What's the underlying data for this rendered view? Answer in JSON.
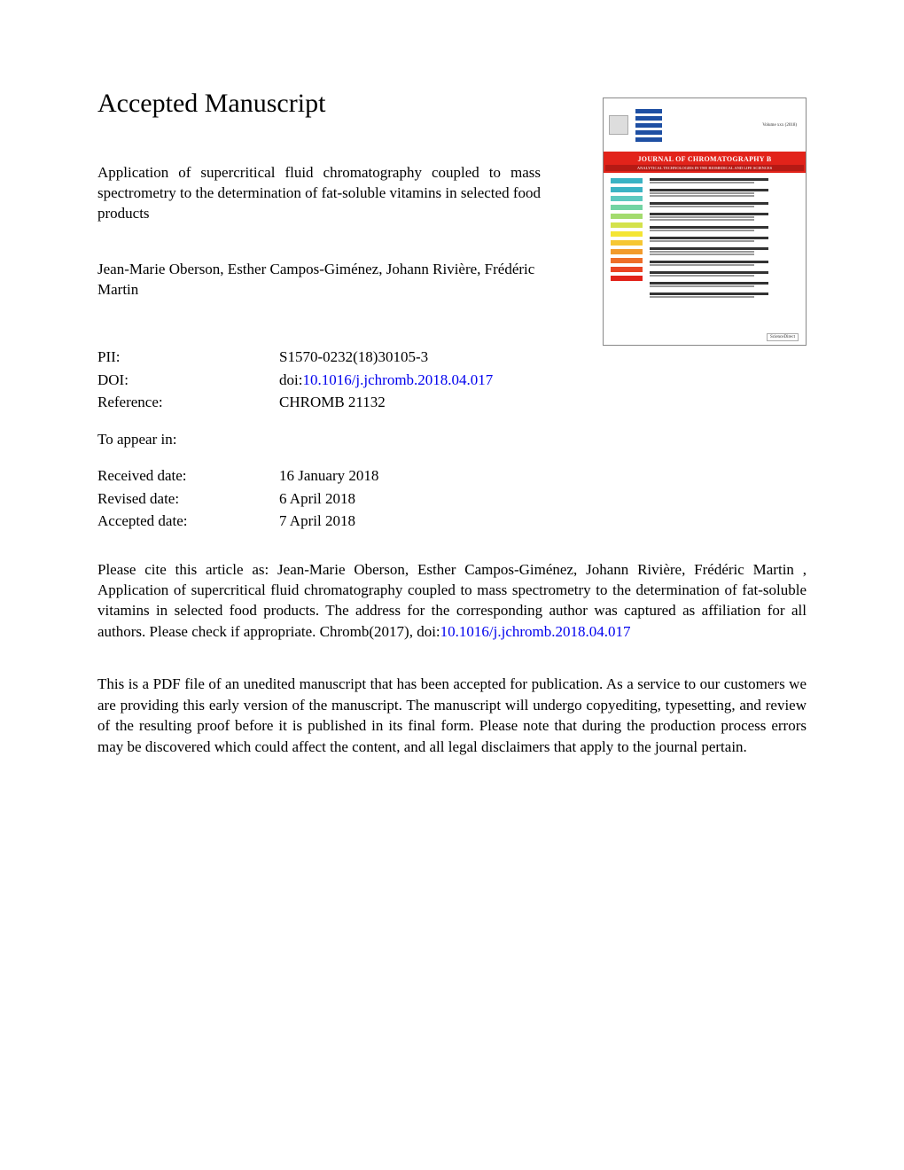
{
  "heading": "Accepted Manuscript",
  "article_title": "Application of supercritical fluid chromatography coupled to mass spectrometry to the determination of fat-soluble vitamins in selected food products",
  "authors": "Jean-Marie Oberson, Esther Campos-Giménez, Johann Rivière, Frédéric Martin",
  "meta": {
    "pii_label": "PII:",
    "pii_value": "S1570-0232(18)30105-3",
    "doi_label": "DOI:",
    "doi_prefix": "doi:",
    "doi_link": "10.1016/j.jchromb.2018.04.017",
    "reference_label": "Reference:",
    "reference_value": "CHROMB 21132",
    "to_appear_label": "To appear in:",
    "to_appear_value": "",
    "received_label": "Received date:",
    "received_value": "16 January 2018",
    "revised_label": "Revised date:",
    "revised_value": "6 April 2018",
    "accepted_label": "Accepted date:",
    "accepted_value": "7 April 2018"
  },
  "citation_pre": "Please cite this article as: Jean-Marie Oberson, Esther Campos-Giménez, Johann Rivière, Frédéric Martin , Application of supercritical fluid chromatography coupled to mass spectrometry to the determination of fat-soluble vitamins in selected food products. The address for the corresponding author was captured as affiliation for all authors. Please check if appropriate. Chromb(2017), doi:",
  "citation_doi": "10.1016/j.jchromb.2018.04.017",
  "disclaimer": "This is a PDF file of an unedited manuscript that has been accepted for publication. As a service to our customers we are providing this early version of the manuscript. The manuscript will undergo copyediting, typesetting, and review of the resulting proof before it is published in its final form. Please note that during the production process errors may be discovered which could affect the content, and all legal disclaimers that apply to the journal pertain.",
  "cover": {
    "journal_title": "JOURNAL OF CHROMATOGRAPHY B",
    "subtitle": "ANALYTICAL TECHNOLOGIES IN THE BIOMEDICAL AND LIFE SCIENCES",
    "issue_info": "Volume xxx (2018)",
    "footer": "ScienceDirect",
    "spectrum_colors": [
      "#3bb3c4",
      "#3bb3c4",
      "#5cc9c0",
      "#72d4a3",
      "#a3db6e",
      "#d4e24b",
      "#f4e534",
      "#f6c733",
      "#f29b2c",
      "#ee6e28",
      "#ea4423",
      "#e2231a"
    ],
    "header_bar_color": "#1e4fa3",
    "red_band_color": "#e2231a",
    "sub_band_color": "#b51a14"
  },
  "colors": {
    "link": "#0000ee",
    "text": "#000000",
    "background": "#ffffff"
  }
}
